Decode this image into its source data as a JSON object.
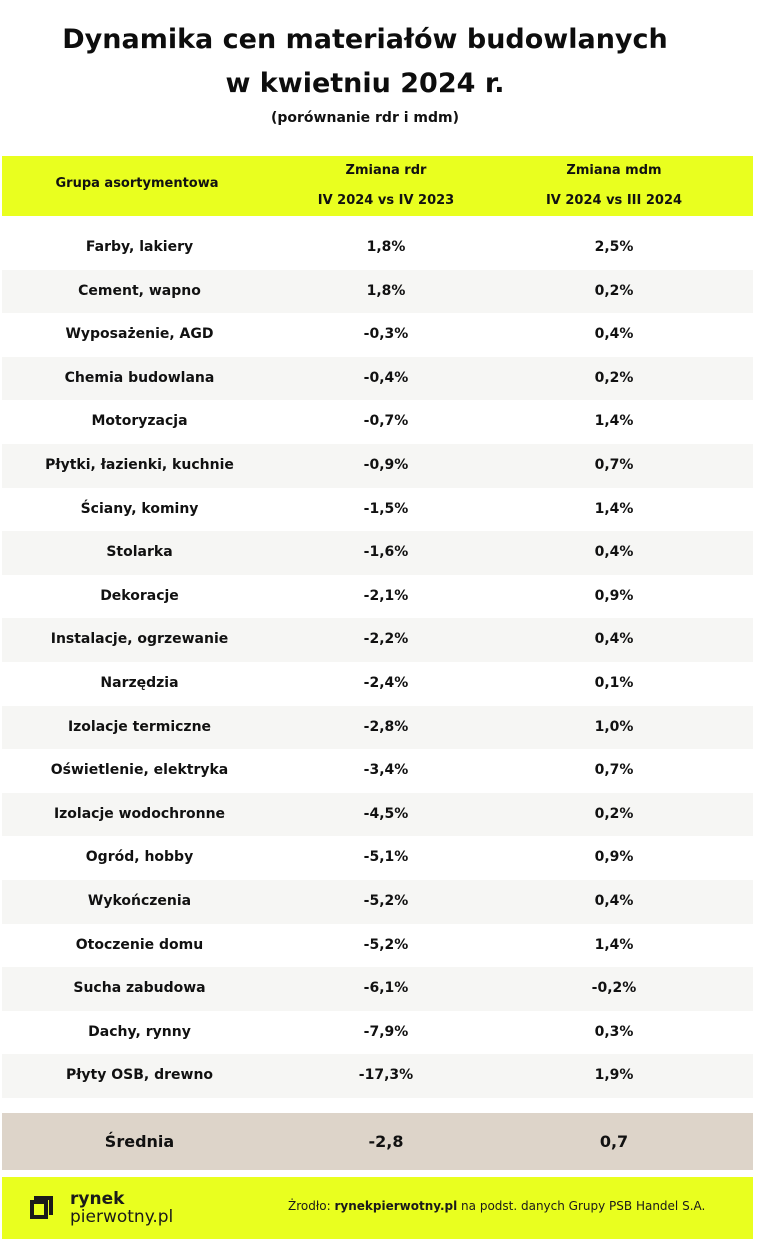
{
  "title_line1": "Dynamika cen materiałów budowlanych",
  "title_line2": "w kwietniu 2024 r.",
  "subtitle": "(porównanie  rdr i mdm)",
  "header": {
    "group": "Grupa asortymentowa",
    "rdr_line1": "Zmiana rdr",
    "rdr_line2": "IV 2024 vs IV 2023",
    "mdm_line1": "Zmiana mdm",
    "mdm_line2": "IV 2024  vs III 2024"
  },
  "rows": [
    {
      "name": "Farby, lakiery",
      "rdr": "1,8%",
      "mdm": "2,5%"
    },
    {
      "name": "Cement, wapno",
      "rdr": "1,8%",
      "mdm": "0,2%"
    },
    {
      "name": "Wyposażenie, AGD",
      "rdr": "-0,3%",
      "mdm": "0,4%"
    },
    {
      "name": "Chemia budowlana",
      "rdr": "-0,4%",
      "mdm": "0,2%"
    },
    {
      "name": "Motoryzacja",
      "rdr": "-0,7%",
      "mdm": "1,4%"
    },
    {
      "name": "Płytki, łazienki, kuchnie",
      "rdr": "-0,9%",
      "mdm": "0,7%"
    },
    {
      "name": "Ściany, kominy",
      "rdr": "-1,5%",
      "mdm": "1,4%"
    },
    {
      "name": "Stolarka",
      "rdr": "-1,6%",
      "mdm": "0,4%"
    },
    {
      "name": "Dekoracje",
      "rdr": "-2,1%",
      "mdm": "0,9%"
    },
    {
      "name": "Instalacje, ogrzewanie",
      "rdr": "-2,2%",
      "mdm": "0,4%"
    },
    {
      "name": "Narzędzia",
      "rdr": "-2,4%",
      "mdm": "0,1%"
    },
    {
      "name": "Izolacje termiczne",
      "rdr": "-2,8%",
      "mdm": "1,0%"
    },
    {
      "name": "Oświetlenie, elektryka",
      "rdr": "-3,4%",
      "mdm": "0,7%"
    },
    {
      "name": "Izolacje wodochronne",
      "rdr": "-4,5%",
      "mdm": "0,2%"
    },
    {
      "name": "Ogród, hobby",
      "rdr": "-5,1%",
      "mdm": "0,9%"
    },
    {
      "name": "Wykończenia",
      "rdr": "-5,2%",
      "mdm": "0,4%"
    },
    {
      "name": "Otoczenie domu",
      "rdr": "-5,2%",
      "mdm": "1,4%"
    },
    {
      "name": "Sucha zabudowa",
      "rdr": "-6,1%",
      "mdm": "-0,2%"
    },
    {
      "name": "Dachy, rynny",
      "rdr": "-7,9%",
      "mdm": "0,3%"
    },
    {
      "name": "Płyty OSB, drewno",
      "rdr": "-17,3%",
      "mdm": "1,9%"
    }
  ],
  "average": {
    "label": "Średnia",
    "rdr": "-2,8",
    "mdm": "0,7"
  },
  "footer": {
    "logo_line1": "rynek",
    "logo_line2": "pierwotny.pl",
    "source_prefix": "Żrodło: ",
    "source_site": "rynekpierwotny.pl",
    "source_suffix": " na podst. danych Grupy PSB Handel S.A."
  },
  "colors": {
    "accent": "#e9ff1f",
    "average_bg": "#ddd4c9",
    "alt_row": "#f6f6f4"
  }
}
